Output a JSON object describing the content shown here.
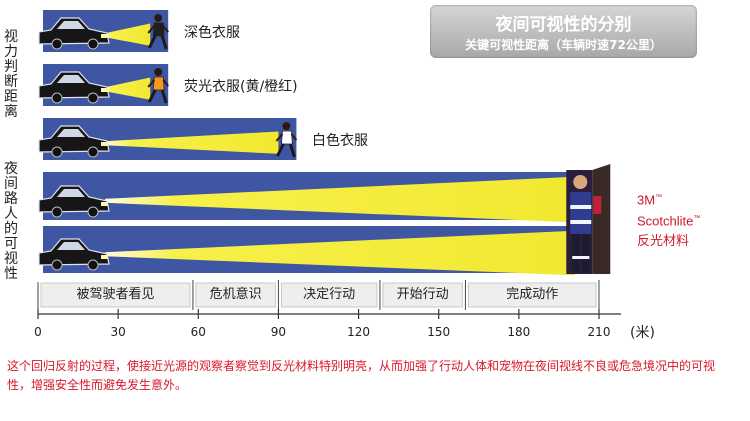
{
  "title": "夜间可视性的分别",
  "subtitle": "关键可视性距离（车辆时速72公里）",
  "side_label_top": "视力判断距离",
  "side_label_bottom": "夜间路人的可视性",
  "rows": [
    {
      "label": "深色衣服",
      "distance_m": 42,
      "figure_color": "#1f1f1f"
    },
    {
      "label": "荧光衣服(黄/橙红)",
      "distance_m": 42,
      "figure_color": "#f39a1e"
    },
    {
      "label": "白色衣服",
      "distance_m": 90,
      "figure_color": "#ffffff"
    },
    {
      "label": "",
      "distance_m": 200
    },
    {
      "label": "",
      "distance_m": 200
    }
  ],
  "product_label": {
    "line1": "3M",
    "tm": "™",
    "line2": "Scotchlite",
    "line3": "反光材料"
  },
  "stages": [
    {
      "label": "被驾驶者看见",
      "from_m": 0,
      "to_m": 58
    },
    {
      "label": "危机意识",
      "from_m": 58,
      "to_m": 90
    },
    {
      "label": "决定行动",
      "from_m": 90,
      "to_m": 128
    },
    {
      "label": "开始行动",
      "from_m": 128,
      "to_m": 160
    },
    {
      "label": "完成动作",
      "from_m": 160,
      "to_m": 210
    }
  ],
  "axis": {
    "ticks": [
      "0",
      "30",
      "60",
      "90",
      "120",
      "150",
      "180",
      "210"
    ],
    "min": 0,
    "max": 210,
    "unit": "(米)"
  },
  "footer_text": "这个回归反射的过程，使接近光源的观察者察觉到反光材料特别明亮，从而加强了行动人体和宠物在夜间视线不良或危急境况中的可视性，增强安全性而避免发生意外。",
  "colors": {
    "panel": "#3f57a3",
    "beam": "#f5ef3c",
    "footer": "#d8182a",
    "product": "#d0182a"
  }
}
